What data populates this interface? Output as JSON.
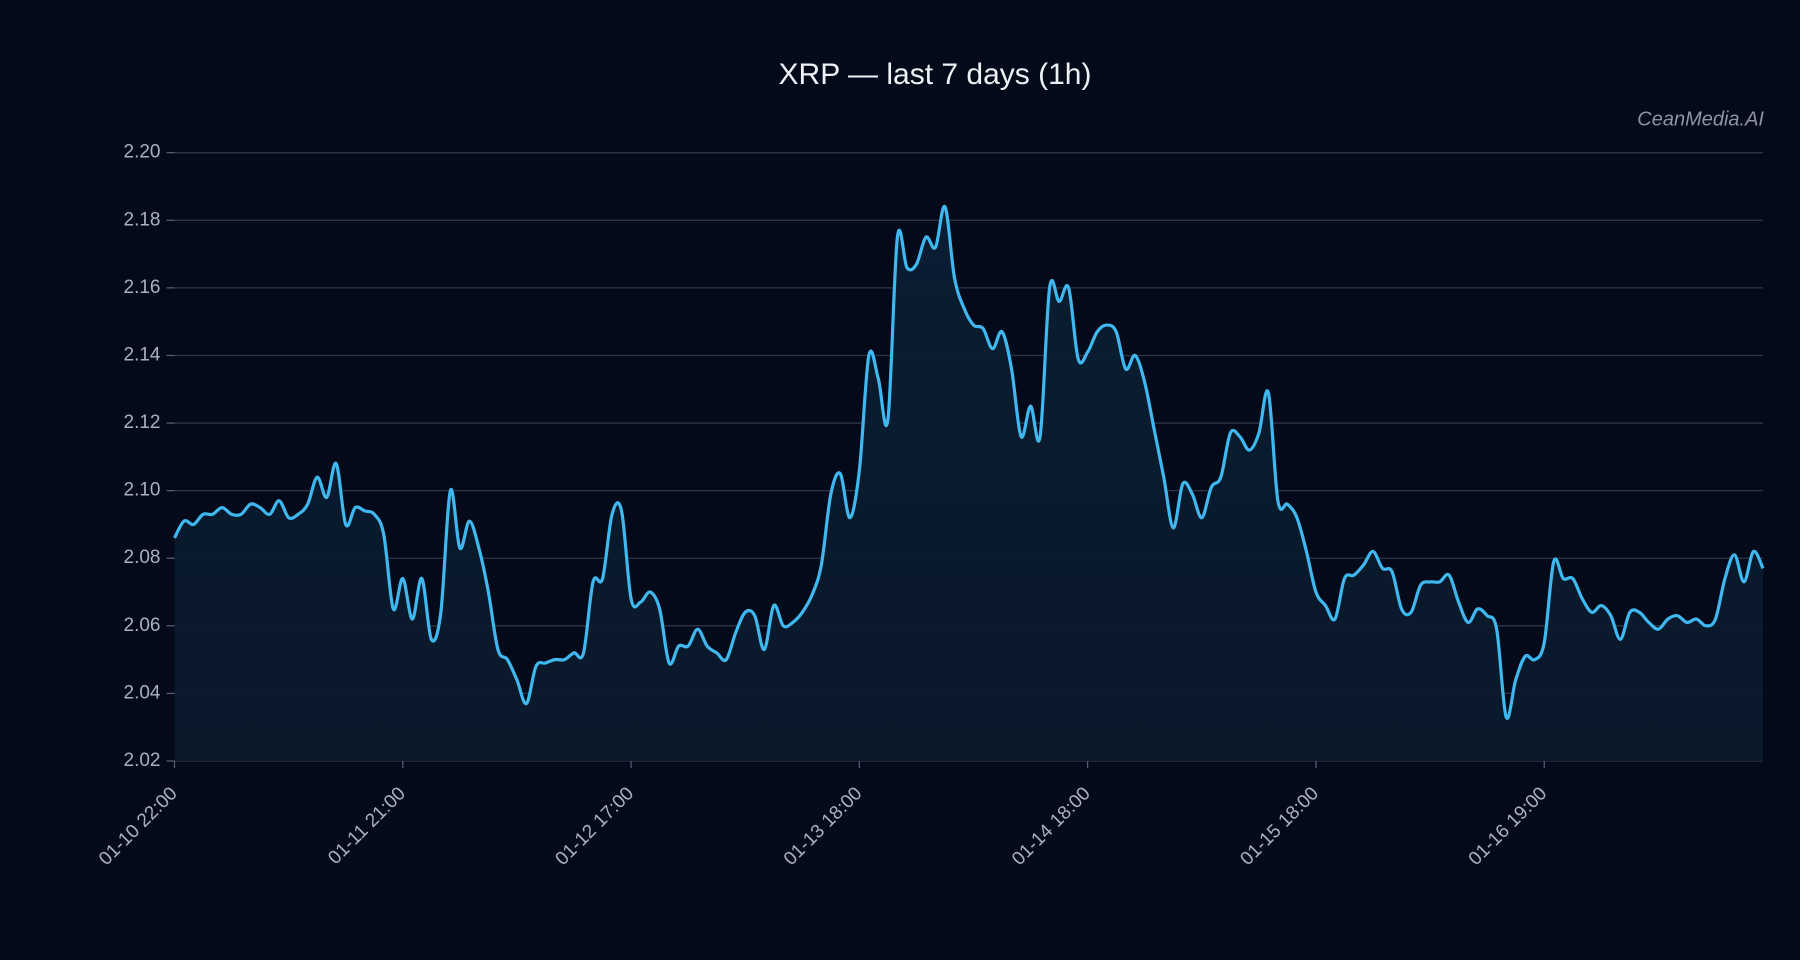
{
  "chart_data": {
    "type": "line",
    "title": "XRP — last 7 days (1h)",
    "watermark": "CeanMedia.AI",
    "categories": [
      "01-10 22:00",
      null,
      null,
      null,
      null,
      null,
      null,
      null,
      null,
      null,
      null,
      null,
      null,
      null,
      null,
      null,
      null,
      null,
      null,
      null,
      null,
      null,
      null,
      null,
      "01-11 21:00",
      null,
      null,
      null,
      null,
      null,
      null,
      null,
      null,
      null,
      null,
      null,
      null,
      null,
      null,
      null,
      null,
      null,
      null,
      null,
      null,
      null,
      null,
      null,
      "01-12 17:00",
      null,
      null,
      null,
      null,
      null,
      null,
      null,
      null,
      null,
      null,
      null,
      null,
      null,
      null,
      null,
      null,
      null,
      null,
      null,
      null,
      null,
      null,
      null,
      "01-13 18:00",
      null,
      null,
      null,
      null,
      null,
      null,
      null,
      null,
      null,
      null,
      null,
      null,
      null,
      null,
      null,
      null,
      null,
      null,
      null,
      null,
      null,
      null,
      null,
      "01-14 18:00",
      null,
      null,
      null,
      null,
      null,
      null,
      null,
      null,
      null,
      null,
      null,
      null,
      null,
      null,
      null,
      null,
      null,
      null,
      null,
      null,
      null,
      null,
      null,
      "01-15 18:00",
      null,
      null,
      null,
      null,
      null,
      null,
      null,
      null,
      null,
      null,
      null,
      null,
      null,
      null,
      null,
      null,
      null,
      null,
      null,
      null,
      null,
      null,
      null,
      "01-16 19:00",
      null,
      null,
      null,
      null,
      null,
      null,
      null,
      null,
      null,
      null,
      null,
      null,
      null,
      null,
      null,
      null,
      null,
      null,
      null,
      null,
      null,
      null,
      null
    ],
    "values": [
      2.086,
      2.091,
      2.09,
      2.093,
      2.093,
      2.095,
      2.093,
      2.093,
      2.096,
      2.095,
      2.093,
      2.097,
      2.092,
      2.093,
      2.096,
      2.104,
      2.098,
      2.108,
      2.09,
      2.095,
      2.094,
      2.093,
      2.087,
      2.065,
      2.074,
      2.062,
      2.074,
      2.056,
      2.064,
      2.1,
      2.083,
      2.091,
      2.083,
      2.07,
      2.053,
      2.05,
      2.044,
      2.037,
      2.048,
      2.049,
      2.05,
      2.05,
      2.052,
      2.052,
      2.073,
      2.074,
      2.093,
      2.094,
      2.068,
      2.067,
      2.07,
      2.065,
      2.049,
      2.054,
      2.054,
      2.059,
      2.054,
      2.052,
      2.05,
      2.058,
      2.064,
      2.063,
      2.053,
      2.066,
      2.06,
      2.061,
      2.064,
      2.069,
      2.078,
      2.099,
      2.105,
      2.092,
      2.106,
      2.14,
      2.133,
      2.121,
      2.175,
      2.166,
      2.167,
      2.175,
      2.172,
      2.184,
      2.163,
      2.154,
      2.149,
      2.148,
      2.142,
      2.147,
      2.136,
      2.116,
      2.125,
      2.116,
      2.16,
      2.156,
      2.16,
      2.139,
      2.141,
      2.147,
      2.149,
      2.147,
      2.136,
      2.14,
      2.132,
      2.118,
      2.104,
      2.089,
      2.102,
      2.099,
      2.092,
      2.101,
      2.104,
      2.117,
      2.116,
      2.112,
      2.117,
      2.129,
      2.097,
      2.096,
      2.092,
      2.082,
      2.07,
      2.066,
      2.062,
      2.074,
      2.075,
      2.078,
      2.082,
      2.077,
      2.076,
      2.065,
      2.064,
      2.072,
      2.073,
      2.073,
      2.075,
      2.067,
      2.061,
      2.065,
      2.063,
      2.059,
      2.033,
      2.044,
      2.051,
      2.05,
      2.055,
      2.079,
      2.074,
      2.074,
      2.068,
      2.064,
      2.066,
      2.063,
      2.056,
      2.064,
      2.064,
      2.061,
      2.059,
      2.062,
      2.063,
      2.061,
      2.062,
      2.06,
      2.062,
      2.074,
      2.081,
      2.073,
      2.082,
      2.077
    ],
    "color": "#3fb8f0",
    "ylim": [
      2.02,
      2.2
    ],
    "yticks": [
      2.02,
      2.04,
      2.06,
      2.08,
      {
        "value": 2.1,
        "label": "2.10"
      },
      2.12,
      2.14,
      2.16,
      2.18,
      {
        "value": 2.2,
        "label": "2.20"
      }
    ],
    "grid": true
  }
}
